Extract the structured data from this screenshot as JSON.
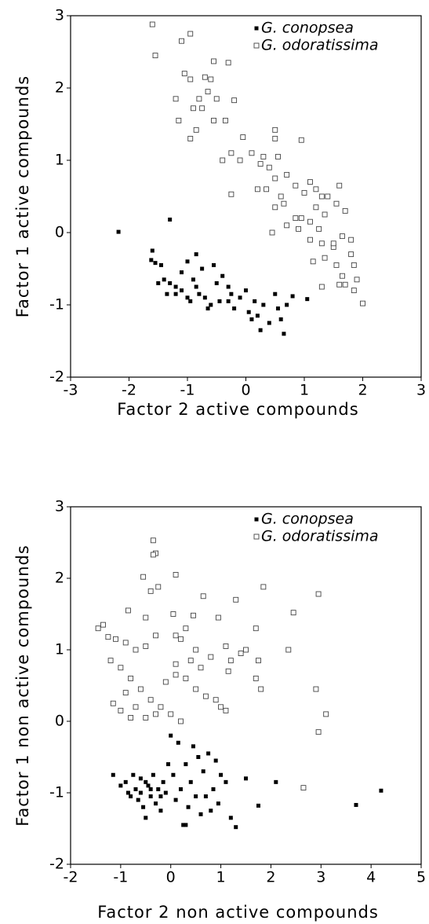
{
  "chart_data": [
    {
      "type": "scatter",
      "xlabel": "Factor 2 active compounds",
      "ylabel": "Factor 1 active compounds",
      "xlim": [
        -3,
        3
      ],
      "ylim": [
        -2,
        3
      ],
      "xticks": [
        -3,
        -2,
        -1,
        0,
        1,
        2,
        3
      ],
      "yticks": [
        -2,
        -1,
        0,
        1,
        2,
        3
      ],
      "legend": "upper right",
      "series": [
        {
          "name": "G. conopsea",
          "color": "#000000",
          "marker": "filled",
          "x": [
            -2.18,
            -1.3,
            -1.6,
            -1.62,
            -1.55,
            -1.45,
            -1.4,
            -1.3,
            -1.2,
            -1.35,
            -1.1,
            -1.0,
            -1.1,
            -1.0,
            -0.85,
            -0.75,
            -0.9,
            -0.8,
            -0.7,
            -0.6,
            -0.5,
            -0.4,
            -0.55,
            -0.3,
            -0.3,
            -0.2,
            -0.1,
            0,
            0.05,
            0.1,
            0.15,
            0.2,
            0.3,
            0.4,
            0.5,
            0.55,
            0.6,
            0.65,
            0.7,
            0.8,
            1.05,
            0.25,
            -0.25,
            -0.45,
            -0.65,
            -0.95,
            -1.2,
            -0.85,
            -1.5
          ],
          "y": [
            0.01,
            0.18,
            -0.25,
            -0.38,
            -0.42,
            -0.45,
            -0.65,
            -0.7,
            -0.75,
            -0.85,
            -0.8,
            -0.9,
            -0.55,
            -0.4,
            -0.3,
            -0.5,
            -0.65,
            -0.85,
            -0.9,
            -1.0,
            -0.7,
            -0.6,
            -0.45,
            -0.75,
            -0.95,
            -1.05,
            -0.9,
            -0.8,
            -1.1,
            -1.2,
            -0.95,
            -1.15,
            -1.0,
            -1.25,
            -0.85,
            -1.05,
            -1.2,
            -1.4,
            -1.0,
            -0.88,
            -0.92,
            -1.35,
            -0.85,
            -0.95,
            -1.05,
            -0.95,
            -0.85,
            -0.75,
            -0.7
          ]
        },
        {
          "name": "G. odoratissima",
          "color": "#444444",
          "marker": "open",
          "x": [
            -1.6,
            -1.55,
            -1.1,
            -0.95,
            -1.05,
            -0.95,
            -0.55,
            -0.3,
            -0.7,
            -0.6,
            -0.65,
            -0.8,
            -0.9,
            -1.2,
            -1.15,
            -0.75,
            -0.5,
            -0.2,
            -0.35,
            -0.55,
            -0.85,
            -0.95,
            -0.05,
            -0.1,
            -0.25,
            -0.4,
            0.1,
            0.3,
            0.5,
            0.5,
            0.55,
            0.95,
            0.25,
            0.4,
            0.5,
            0.2,
            0.35,
            -0.25,
            0.6,
            0.7,
            0.85,
            0.5,
            0.65,
            0.85,
            0.95,
            0.9,
            0.7,
            0.45,
            1.0,
            1.1,
            1.2,
            1.3,
            1.2,
            1.35,
            1.1,
            1.25,
            1.4,
            1.6,
            1.55,
            1.7,
            1.1,
            1.3,
            1.5,
            1.65,
            1.8,
            1.35,
            1.55,
            1.8,
            1.85,
            1.3,
            1.65,
            1.6,
            1.7,
            1.9,
            1.85,
            2.0,
            1.15,
            1.5
          ],
          "y": [
            2.88,
            2.45,
            2.65,
            2.75,
            2.2,
            2.12,
            2.37,
            2.35,
            2.15,
            2.12,
            1.95,
            1.85,
            1.72,
            1.85,
            1.55,
            1.72,
            1.85,
            1.83,
            1.55,
            1.55,
            1.42,
            1.3,
            1.32,
            1.0,
            1.1,
            1.0,
            1.1,
            1.05,
            1.42,
            1.3,
            1.05,
            1.28,
            0.95,
            0.9,
            0.75,
            0.6,
            0.6,
            0.53,
            0.5,
            0.8,
            0.65,
            0.35,
            0.4,
            0.2,
            0.2,
            0.05,
            0.1,
            0.0,
            0.55,
            0.7,
            0.6,
            0.5,
            0.35,
            0.25,
            0.15,
            0.05,
            0.5,
            0.65,
            0.4,
            0.3,
            -0.1,
            -0.15,
            -0.2,
            -0.05,
            -0.1,
            -0.35,
            -0.45,
            -0.3,
            -0.45,
            -0.75,
            -0.6,
            -0.72,
            -0.72,
            -0.65,
            -0.8,
            -0.98,
            -0.4,
            -0.15
          ]
        }
      ]
    },
    {
      "type": "scatter",
      "xlabel": "Factor 2 non active compounds",
      "ylabel": "Factor 1 non active compounds",
      "xlim": [
        -2,
        5
      ],
      "ylim": [
        -2,
        3
      ],
      "xticks": [
        -2,
        -1,
        0,
        1,
        2,
        3,
        4,
        5
      ],
      "yticks": [
        -2,
        -1,
        0,
        1,
        2,
        3
      ],
      "legend": "upper right",
      "series": [
        {
          "name": "G. conopsea",
          "color": "#000000",
          "marker": "filled",
          "x": [
            -1.15,
            -1.0,
            -0.9,
            -0.85,
            -0.75,
            -0.7,
            -0.65,
            -0.6,
            -0.55,
            -0.5,
            -0.45,
            -0.4,
            -0.35,
            -0.3,
            -0.25,
            -0.2,
            -0.15,
            -0.1,
            -0.05,
            0.0,
            0.05,
            0.1,
            0.15,
            0.2,
            0.25,
            0.3,
            0.35,
            0.4,
            0.45,
            0.5,
            0.55,
            0.6,
            0.65,
            0.7,
            0.75,
            0.8,
            0.85,
            0.9,
            0.95,
            1.0,
            1.1,
            1.2,
            1.3,
            1.5,
            1.75,
            2.1,
            3.7,
            4.2,
            -0.8,
            -0.6,
            -0.4,
            -0.2,
            0.3,
            -0.5
          ],
          "y": [
            -0.75,
            -0.9,
            -0.85,
            -1.0,
            -0.75,
            -0.95,
            -1.1,
            -0.8,
            -1.2,
            -1.35,
            -0.9,
            -1.05,
            -0.75,
            -1.15,
            -0.95,
            -1.25,
            -0.85,
            -1.0,
            -0.6,
            -0.2,
            -0.75,
            -1.1,
            -0.3,
            -0.95,
            -1.45,
            -0.6,
            -1.2,
            -0.85,
            -0.35,
            -1.05,
            -0.5,
            -1.3,
            -0.7,
            -1.05,
            -0.45,
            -1.25,
            -0.95,
            -0.55,
            -1.15,
            -0.75,
            -0.85,
            -1.35,
            -1.48,
            -0.8,
            -1.18,
            -0.85,
            -1.17,
            -0.97,
            -1.05,
            -1.0,
            -0.95,
            -1.05,
            -1.45,
            -0.85
          ]
        },
        {
          "name": "G. odoratissima",
          "color": "#444444",
          "marker": "open",
          "x": [
            -0.35,
            -0.3,
            -0.35,
            0.1,
            -0.55,
            -0.25,
            -0.4,
            0.65,
            1.3,
            1.85,
            2.95,
            2.45,
            1.1,
            -0.85,
            -0.5,
            0.05,
            0.45,
            0.95,
            -1.35,
            -1.45,
            -1.25,
            -1.1,
            -0.9,
            -0.7,
            -0.5,
            -0.3,
            0.1,
            0.2,
            0.3,
            0.5,
            0.8,
            1.2,
            1.15,
            1.4,
            1.5,
            1.7,
            1.75,
            2.35,
            1.7,
            1.8,
            2.9,
            3.1,
            2.95,
            -1.2,
            -1.0,
            -0.8,
            -0.6,
            -0.4,
            -0.2,
            0.0,
            0.2,
            -1.15,
            -1.0,
            -0.9,
            -0.7,
            -0.5,
            -0.3,
            0.3,
            0.5,
            0.7,
            0.9,
            1.0,
            1.1,
            0.6,
            0.4,
            0.1,
            -0.1,
            2.65,
            -0.8,
            0.1
          ],
          "y": [
            2.53,
            2.35,
            2.33,
            2.05,
            2.02,
            1.88,
            1.82,
            1.75,
            1.7,
            1.88,
            1.78,
            1.52,
            1.05,
            1.55,
            1.45,
            1.5,
            1.48,
            1.45,
            1.35,
            1.3,
            1.18,
            1.15,
            1.1,
            1.0,
            1.05,
            1.2,
            1.2,
            1.15,
            1.3,
            1.0,
            0.9,
            0.85,
            0.7,
            0.95,
            1.0,
            1.3,
            0.85,
            1.0,
            0.6,
            0.45,
            0.45,
            0.1,
            -0.15,
            0.85,
            0.75,
            0.6,
            0.45,
            0.3,
            0.2,
            0.1,
            0.0,
            0.25,
            0.15,
            0.4,
            0.2,
            0.05,
            0.1,
            0.6,
            0.45,
            0.35,
            0.3,
            0.2,
            0.15,
            0.75,
            0.85,
            0.8,
            0.55,
            -0.93,
            0.05,
            0.65
          ]
        }
      ]
    }
  ]
}
